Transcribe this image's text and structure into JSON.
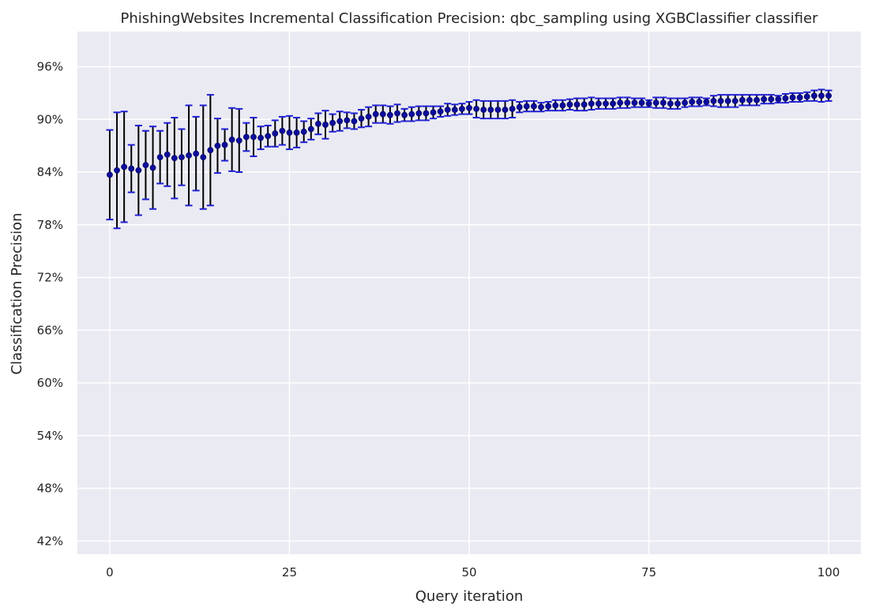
{
  "chart_data": {
    "type": "scatter",
    "title": "PhishingWebsites Incremental Classification Precision: qbc_sampling using XGBClassifier classifier",
    "xlabel": "Query iteration",
    "ylabel": "Classification Precision",
    "xlim": [
      -4.5,
      104.5
    ],
    "ylim": [
      0.405,
      1.0
    ],
    "x_ticks": [
      0,
      25,
      50,
      75,
      100
    ],
    "x_tick_labels": [
      "0",
      "25",
      "50",
      "75",
      "100"
    ],
    "y_ticks": [
      0.42,
      0.48,
      0.54,
      0.6,
      0.66,
      0.72,
      0.78,
      0.84,
      0.9,
      0.96
    ],
    "y_tick_labels": [
      "42%",
      "48%",
      "54%",
      "60%",
      "66%",
      "72%",
      "78%",
      "84%",
      "90%",
      "96%"
    ],
    "grid": true,
    "colors": {
      "background": "#eaeaf2",
      "grid": "#ffffff",
      "marker": "#0d0d9c",
      "errorbar": "#000000",
      "cap": "#1f1fd6"
    },
    "series": [
      {
        "x": [
          0,
          1,
          2,
          3,
          4,
          5,
          6,
          7,
          8,
          9,
          10,
          11,
          12,
          13,
          14,
          15,
          16,
          17,
          18,
          19,
          20,
          21,
          22,
          23,
          24,
          25,
          26,
          27,
          28,
          29,
          30,
          31,
          32,
          33,
          34,
          35,
          36,
          37,
          38,
          39,
          40,
          41,
          42,
          43,
          44,
          45,
          46,
          47,
          48,
          49,
          50,
          51,
          52,
          53,
          54,
          55,
          56,
          57,
          58,
          59,
          60,
          61,
          62,
          63,
          64,
          65,
          66,
          67,
          68,
          69,
          70,
          71,
          72,
          73,
          74,
          75,
          76,
          77,
          78,
          79,
          80,
          81,
          82,
          83,
          84,
          85,
          86,
          87,
          88,
          89,
          90,
          91,
          92,
          93,
          94,
          95,
          96,
          97,
          98,
          99,
          100
        ],
        "y": [
          0.837,
          0.842,
          0.846,
          0.844,
          0.842,
          0.848,
          0.845,
          0.857,
          0.86,
          0.856,
          0.857,
          0.859,
          0.861,
          0.857,
          0.865,
          0.87,
          0.871,
          0.877,
          0.876,
          0.88,
          0.88,
          0.879,
          0.881,
          0.884,
          0.887,
          0.885,
          0.885,
          0.886,
          0.889,
          0.895,
          0.894,
          0.896,
          0.898,
          0.899,
          0.898,
          0.901,
          0.903,
          0.906,
          0.906,
          0.905,
          0.907,
          0.905,
          0.906,
          0.907,
          0.907,
          0.908,
          0.909,
          0.911,
          0.911,
          0.912,
          0.913,
          0.912,
          0.911,
          0.911,
          0.911,
          0.911,
          0.912,
          0.914,
          0.915,
          0.915,
          0.914,
          0.915,
          0.916,
          0.916,
          0.917,
          0.917,
          0.917,
          0.918,
          0.918,
          0.918,
          0.918,
          0.919,
          0.919,
          0.919,
          0.919,
          0.918,
          0.919,
          0.919,
          0.918,
          0.918,
          0.919,
          0.92,
          0.92,
          0.92,
          0.921,
          0.921,
          0.921,
          0.921,
          0.922,
          0.922,
          0.922,
          0.923,
          0.923,
          0.923,
          0.924,
          0.925,
          0.925,
          0.926,
          0.927,
          0.927,
          0.927
        ],
        "yerr": [
          0.051,
          0.066,
          0.063,
          0.027,
          0.051,
          0.039,
          0.047,
          0.03,
          0.036,
          0.046,
          0.032,
          0.057,
          0.042,
          0.059,
          0.063,
          0.031,
          0.018,
          0.036,
          0.036,
          0.016,
          0.022,
          0.013,
          0.012,
          0.015,
          0.016,
          0.019,
          0.017,
          0.012,
          0.012,
          0.012,
          0.016,
          0.01,
          0.011,
          0.009,
          0.009,
          0.01,
          0.011,
          0.01,
          0.01,
          0.01,
          0.01,
          0.007,
          0.008,
          0.008,
          0.008,
          0.007,
          0.006,
          0.007,
          0.006,
          0.006,
          0.007,
          0.01,
          0.01,
          0.01,
          0.01,
          0.01,
          0.01,
          0.006,
          0.006,
          0.006,
          0.005,
          0.005,
          0.006,
          0.006,
          0.006,
          0.007,
          0.007,
          0.007,
          0.006,
          0.006,
          0.006,
          0.006,
          0.006,
          0.005,
          0.005,
          0.004,
          0.006,
          0.006,
          0.006,
          0.006,
          0.005,
          0.005,
          0.005,
          0.004,
          0.006,
          0.007,
          0.007,
          0.007,
          0.006,
          0.006,
          0.006,
          0.005,
          0.005,
          0.004,
          0.005,
          0.005,
          0.005,
          0.005,
          0.006,
          0.007,
          0.006
        ]
      }
    ]
  }
}
